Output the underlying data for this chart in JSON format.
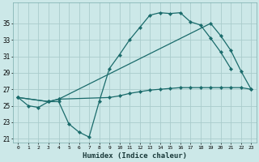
{
  "xlabel": "Humidex (Indice chaleur)",
  "xlim": [
    -0.5,
    23.5
  ],
  "ylim": [
    20.5,
    37.5
  ],
  "yticks": [
    21,
    23,
    25,
    27,
    29,
    31,
    33,
    35
  ],
  "xticks": [
    0,
    1,
    2,
    3,
    4,
    5,
    6,
    7,
    8,
    9,
    10,
    11,
    12,
    13,
    14,
    15,
    16,
    17,
    18,
    19,
    20,
    21,
    22,
    23
  ],
  "bg_color": "#cce8e8",
  "grid_color": "#aacccc",
  "line_color": "#1a6b6b",
  "line1_x": [
    0,
    1,
    2,
    3,
    4,
    5,
    6,
    7,
    8,
    9,
    10,
    11,
    12,
    13,
    14,
    15,
    16,
    17,
    18,
    19,
    20,
    21
  ],
  "line1_y": [
    26.0,
    25.0,
    24.8,
    25.5,
    25.5,
    22.8,
    21.8,
    21.2,
    25.5,
    29.5,
    31.2,
    33.0,
    34.5,
    36.0,
    36.3,
    36.2,
    36.3,
    35.2,
    34.8,
    33.2,
    31.5,
    29.5
  ],
  "line2_x": [
    0,
    3,
    4,
    19,
    20,
    21,
    22,
    23
  ],
  "line2_y": [
    26.0,
    25.5,
    25.8,
    35.0,
    33.5,
    31.7,
    29.2,
    27.0
  ],
  "line3_x": [
    0,
    3,
    4,
    9,
    10,
    11,
    12,
    13,
    14,
    15,
    16,
    17,
    18,
    19,
    20,
    21,
    22,
    23
  ],
  "line3_y": [
    26.0,
    25.5,
    25.8,
    26.0,
    26.2,
    26.5,
    26.7,
    26.9,
    27.0,
    27.1,
    27.2,
    27.2,
    27.2,
    27.2,
    27.2,
    27.2,
    27.2,
    27.0
  ]
}
